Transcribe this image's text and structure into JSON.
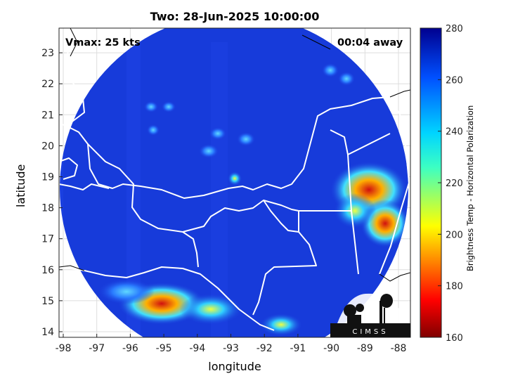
{
  "title": "Two: 28-Jun-2025 10:00:00",
  "annotations": {
    "vmax": "Vmax: 25 kts",
    "away": "00:04 away"
  },
  "axes": {
    "xlabel": "longitude",
    "ylabel": "latitude",
    "x_ticks": [
      "-98",
      "-97",
      "-96",
      "-95",
      "-94",
      "-93",
      "-92",
      "-91",
      "-90",
      "-89",
      "-88"
    ],
    "y_ticks": [
      "14",
      "15",
      "16",
      "17",
      "18",
      "19",
      "20",
      "21",
      "22",
      "23"
    ],
    "grid": true
  },
  "colorbar": {
    "label": "Brightness Temp - Horizontal Polarization",
    "ticks": [
      "280",
      "260",
      "240",
      "220",
      "200",
      "180",
      "160"
    ],
    "range": [
      160,
      280
    ],
    "colormap": "jet"
  },
  "logo": {
    "text": "CIMSS"
  },
  "colors": {
    "background_field": "#1a3fe0",
    "coast": "#ffffff",
    "land_outline": "#000000"
  }
}
